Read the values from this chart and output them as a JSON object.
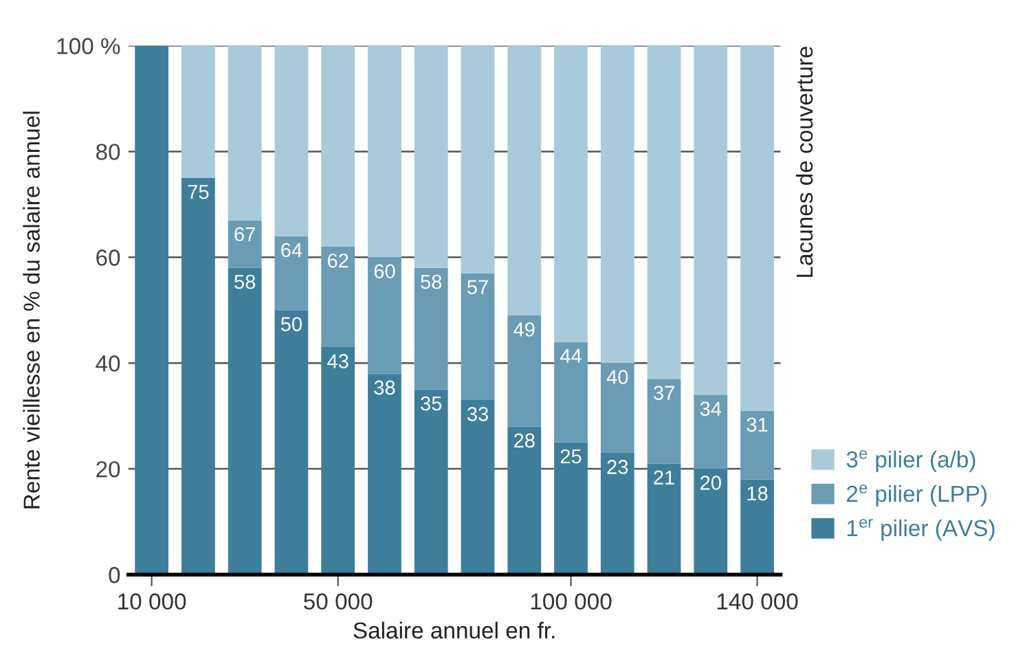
{
  "chart_data": {
    "type": "bar",
    "stacked": true,
    "xlabel": "Salaire annuel en fr.",
    "ylabel": "Rente vieillesse en % du salaire annuel",
    "x": [
      10000,
      20000,
      30000,
      40000,
      50000,
      60000,
      70000,
      80000,
      90000,
      100000,
      110000,
      120000,
      130000,
      140000
    ],
    "xlim": [
      5000,
      145000
    ],
    "xticks": [
      {
        "value": 10000,
        "label": "10 000"
      },
      {
        "value": 50000,
        "label": "50 000"
      },
      {
        "value": 100000,
        "label": "100 000"
      },
      {
        "value": 140000,
        "label": "140 000"
      }
    ],
    "series": [
      {
        "name": "1$^{er}$ pilier (AVS)",
        "color": "#3f7e9b",
        "values": [
          100,
          75,
          58,
          50,
          43,
          38,
          35,
          33,
          28,
          25,
          23,
          21,
          20,
          18
        ],
        "value_labels": [
          null,
          "75",
          "58",
          "50",
          "43",
          "38",
          "35",
          "33",
          "28",
          "25",
          "23",
          "21",
          "20",
          "18"
        ]
      },
      {
        "name": "2$^{e}$ pilier (LPP)",
        "color": "#6b9cb6",
        "values": [
          0,
          0,
          9,
          14,
          19,
          22,
          23,
          24,
          21,
          19,
          17,
          16,
          14,
          13
        ]
      },
      {
        "name": "3$^{e}$ pilier (a/b)",
        "color": "#a8cadb",
        "values": [
          0,
          25,
          33,
          36,
          38,
          40,
          42,
          43,
          51,
          56,
          60,
          63,
          66,
          69
        ]
      }
    ],
    "ylim": [
      0,
      100
    ],
    "yticks": [
      0,
      20,
      40,
      60,
      80,
      {
        "value": 100,
        "label": "100 %"
      }
    ],
    "grid": "y",
    "legend": "bottom right",
    "annotations": [
      "Lacunes de couverture",
      {
        "text": "67",
        "x": 30000,
        "y": 67
      },
      {
        "text": "64",
        "x": 40000,
        "y": 64
      },
      {
        "text": "62",
        "x": 50000,
        "y": 62
      },
      {
        "text": "60",
        "x": 60000,
        "y": 60
      },
      {
        "text": "58",
        "x": 70000,
        "y": 58
      },
      {
        "text": "57",
        "x": 80000,
        "y": 57
      },
      {
        "text": "49",
        "x": 90000,
        "y": 49
      },
      {
        "text": "44",
        "x": 100000,
        "y": 44
      },
      {
        "text": "40",
        "x": 110000,
        "y": 40
      },
      {
        "text": "37",
        "x": 120000,
        "y": 37
      },
      {
        "text": "34",
        "x": 130000,
        "y": 34
      },
      {
        "text": "31",
        "x": 140000,
        "y": 31
      }
    ]
  }
}
